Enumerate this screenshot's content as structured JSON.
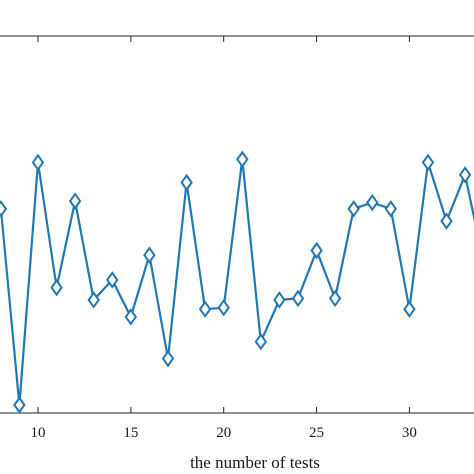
{
  "chart_data": {
    "type": "line",
    "xlabel": "the number of tests",
    "ylabel": "",
    "title": "",
    "x_ticks": [
      10,
      15,
      20,
      25,
      30
    ],
    "x_tick_labels": [
      "10",
      "15",
      "20",
      "25",
      "30"
    ],
    "xlim_visible": [
      8.0,
      34.0
    ],
    "ylim_visible": [
      0.0,
      1.0
    ],
    "grid": false,
    "legend": "none",
    "marker": "diamond",
    "line_color": "#1f77b4",
    "series": [
      {
        "x": [
          8,
          9,
          10,
          11,
          12,
          13,
          14,
          15,
          16,
          17,
          18,
          19,
          20,
          21,
          22,
          23,
          24,
          25,
          26,
          27,
          28,
          29,
          30,
          31,
          32,
          33,
          34
        ],
        "y": [
          0.635,
          0.0,
          0.785,
          0.38,
          0.66,
          0.34,
          0.405,
          0.285,
          0.485,
          0.15,
          0.72,
          0.31,
          0.315,
          0.795,
          0.205,
          0.34,
          0.345,
          0.5,
          0.345,
          0.635,
          0.655,
          0.635,
          0.31,
          0.785,
          0.595,
          0.745,
          0.46
        ]
      }
    ]
  }
}
